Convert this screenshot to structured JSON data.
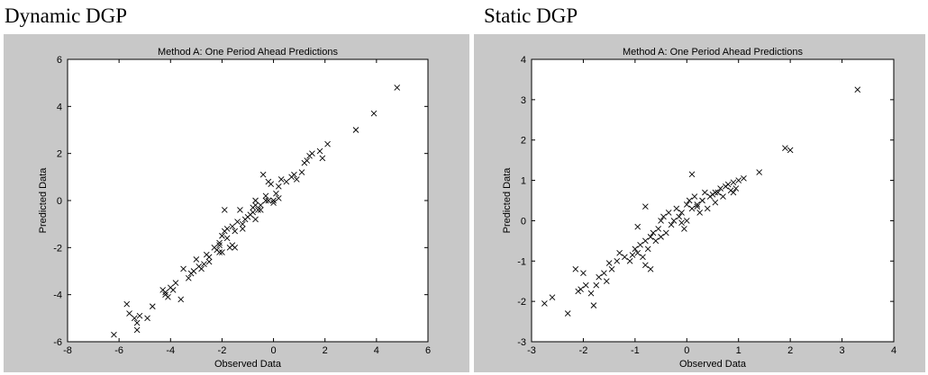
{
  "panels": [
    {
      "label": "Dynamic DGP"
    },
    {
      "label": "Static DGP"
    }
  ],
  "chart_data": [
    {
      "type": "scatter",
      "title": "Method A: One Period Ahead Predictions",
      "xlabel": "Observed Data",
      "ylabel": "Predicted Data",
      "xlim": [
        -8,
        6
      ],
      "ylim": [
        -6,
        6
      ],
      "xticks": [
        -8,
        -6,
        -4,
        -2,
        0,
        2,
        4,
        6
      ],
      "yticks": [
        -6,
        -4,
        -2,
        0,
        2,
        4,
        6
      ],
      "marker": "x",
      "grid": false,
      "x": [
        -6.2,
        -5.7,
        -5.6,
        -5.4,
        -5.3,
        -5.3,
        -5.2,
        -4.9,
        -4.7,
        -4.3,
        -4.2,
        -4.2,
        -4.1,
        -4.0,
        -3.9,
        -3.8,
        -3.6,
        -3.5,
        -3.3,
        -3.2,
        -3.1,
        -3.0,
        -2.9,
        -2.8,
        -2.7,
        -2.6,
        -2.5,
        -2.5,
        -2.3,
        -2.2,
        -2.1,
        -2.1,
        -2.0,
        -2.0,
        -1.9,
        -1.9,
        -1.8,
        -1.8,
        -1.7,
        -1.6,
        -1.6,
        -1.5,
        -1.4,
        -1.3,
        -1.2,
        -1.2,
        -1.1,
        -1.0,
        -0.9,
        -0.8,
        -0.8,
        -0.7,
        -0.7,
        -0.6,
        -0.5,
        -0.5,
        -0.4,
        -0.3,
        -0.3,
        -0.2,
        -0.2,
        -0.1,
        0.0,
        0.0,
        0.1,
        0.2,
        0.3,
        0.5,
        0.7,
        0.8,
        0.9,
        1.1,
        1.2,
        1.3,
        1.4,
        1.5,
        1.8,
        1.9,
        2.1,
        3.2,
        3.9,
        4.8,
        -2.1,
        -1.5,
        -0.7,
        0.2
      ],
      "y": [
        -5.7,
        -4.4,
        -4.8,
        -5.0,
        -5.2,
        -5.5,
        -4.9,
        -5.0,
        -4.5,
        -3.8,
        -3.9,
        -4.0,
        -4.1,
        -3.7,
        -3.8,
        -3.5,
        -4.2,
        -2.9,
        -3.3,
        -3.1,
        -3.0,
        -2.5,
        -2.8,
        -2.9,
        -2.7,
        -2.3,
        -2.6,
        -2.4,
        -2.0,
        -2.1,
        -1.9,
        -1.8,
        -2.2,
        -1.5,
        -0.4,
        -1.3,
        -1.2,
        -1.6,
        -2.0,
        -1.9,
        -1.1,
        -1.3,
        -0.9,
        -0.4,
        -1.2,
        -1.0,
        -0.8,
        -0.7,
        -0.6,
        -0.3,
        -0.5,
        -0.2,
        0.0,
        -0.4,
        -0.4,
        -0.2,
        1.1,
        0.2,
        0.0,
        0.8,
        0.0,
        0.7,
        0.0,
        -0.1,
        0.3,
        0.6,
        0.9,
        0.8,
        1.0,
        1.1,
        0.9,
        1.2,
        1.6,
        1.7,
        1.9,
        2.0,
        2.1,
        1.8,
        2.4,
        3.0,
        3.7,
        4.8,
        -2.2,
        -2.0,
        -0.8,
        0.1
      ]
    },
    {
      "type": "scatter",
      "title": "Method A: One Period Ahead Predictions",
      "xlabel": "Observed Data",
      "ylabel": "Predicted Data",
      "xlim": [
        -3,
        4
      ],
      "ylim": [
        -3,
        4
      ],
      "xticks": [
        -3,
        -2,
        -1,
        0,
        1,
        2,
        3,
        4
      ],
      "yticks": [
        -3,
        -2,
        -1,
        0,
        1,
        2,
        3,
        4
      ],
      "marker": "x",
      "grid": false,
      "x": [
        -2.75,
        -2.6,
        -2.3,
        -2.15,
        -2.1,
        -2.05,
        -2.0,
        -1.95,
        -1.85,
        -1.8,
        -1.75,
        -1.7,
        -1.6,
        -1.55,
        -1.5,
        -1.45,
        -1.35,
        -1.3,
        -1.2,
        -1.1,
        -1.05,
        -1.0,
        -0.95,
        -0.9,
        -0.85,
        -0.8,
        -0.8,
        -0.75,
        -0.7,
        -0.7,
        -0.65,
        -0.6,
        -0.55,
        -0.5,
        -0.5,
        -0.45,
        -0.4,
        -0.35,
        -0.3,
        -0.25,
        -0.2,
        -0.15,
        -0.1,
        -0.05,
        0.0,
        0.0,
        0.05,
        0.1,
        0.15,
        0.2,
        0.25,
        0.3,
        0.35,
        0.4,
        0.45,
        0.5,
        0.55,
        0.6,
        0.65,
        0.7,
        0.75,
        0.8,
        0.85,
        0.9,
        0.95,
        1.0,
        1.1,
        1.4,
        1.9,
        2.0,
        3.3,
        0.1,
        -0.8,
        -0.95,
        -0.1,
        0.2,
        0.55,
        0.9
      ],
      "y": [
        -2.05,
        -1.9,
        -2.3,
        -1.2,
        -1.75,
        -1.7,
        -1.3,
        -1.6,
        -1.8,
        -2.1,
        -1.6,
        -1.4,
        -1.3,
        -1.5,
        -1.05,
        -1.2,
        -1.0,
        -0.8,
        -0.9,
        -1.0,
        -0.85,
        -0.7,
        -0.8,
        -0.6,
        -0.9,
        -0.5,
        -1.1,
        -0.7,
        -0.4,
        -1.2,
        -0.3,
        -0.5,
        -0.2,
        -0.4,
        0.0,
        0.1,
        -0.3,
        0.2,
        -0.1,
        0.0,
        0.3,
        0.1,
        0.2,
        -0.2,
        0.0,
        0.4,
        0.5,
        0.3,
        0.6,
        0.4,
        0.2,
        0.5,
        0.7,
        0.3,
        0.6,
        0.65,
        0.45,
        0.7,
        0.8,
        0.6,
        0.85,
        0.9,
        0.75,
        0.95,
        0.8,
        1.0,
        1.05,
        1.2,
        1.8,
        1.75,
        3.25,
        1.15,
        0.35,
        -0.15,
        -0.05,
        0.35,
        0.7,
        0.7
      ]
    }
  ]
}
